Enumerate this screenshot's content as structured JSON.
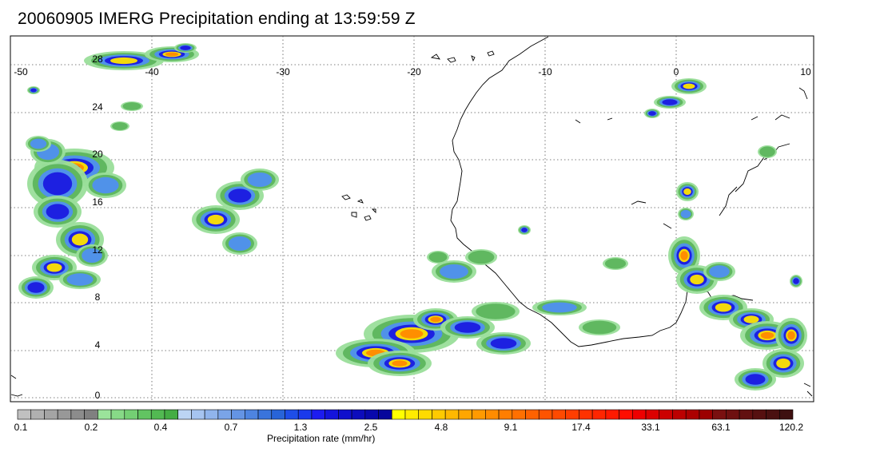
{
  "title": "20060905 IMERG Precipitation ending at 13:59:59 Z",
  "map": {
    "lon_labels": [
      "-50",
      "-40",
      "-30",
      "-20",
      "-10",
      "0",
      "10"
    ],
    "lat_labels": [
      "28",
      "24",
      "20",
      "16",
      "12",
      "8",
      "4",
      "0"
    ],
    "extent": {
      "lon_min": -50,
      "lon_max": 10,
      "lat_min": -0.5,
      "lat_max": 30
    }
  },
  "colorbar": {
    "title": "Precipitation rate (mm/hr)",
    "labels": [
      "0.1",
      "0.2",
      "0.4",
      "0.7",
      "1.3",
      "2.5",
      "4.8",
      "9.1",
      "17.4",
      "33.1",
      "63.1",
      "120.2"
    ],
    "colors": [
      "#c0c0c0",
      "#b0b0b0",
      "#a4a4a4",
      "#989898",
      "#8c8c8c",
      "#808080",
      "#9be39b",
      "#87d987",
      "#74cf74",
      "#62c462",
      "#52b952",
      "#44ad44",
      "#bcd4f4",
      "#a6c4f0",
      "#90b4ec",
      "#7aa4e8",
      "#6494e4",
      "#4e84e0",
      "#3a74dc",
      "#2864d8",
      "#1e4ee8",
      "#1a3aec",
      "#1c1cf0",
      "#1414dc",
      "#1010cc",
      "#0c0cbc",
      "#0808ac",
      "#06069c",
      "#ffff00",
      "#ffec00",
      "#ffdb00",
      "#ffca00",
      "#ffb800",
      "#ffa600",
      "#ff9a00",
      "#ff8c00",
      "#ff7e00",
      "#ff7000",
      "#ff6200",
      "#ff5400",
      "#ff4a00",
      "#ff3e00",
      "#ff3200",
      "#ff2600",
      "#ff1a00",
      "#ff0e00",
      "#ee0000",
      "#dc0000",
      "#cc0000",
      "#bc0000",
      "#ac0000",
      "#9c0000",
      "#7a1010",
      "#6e1010",
      "#621010",
      "#561010",
      "#4a1010",
      "#3e1010"
    ]
  }
}
